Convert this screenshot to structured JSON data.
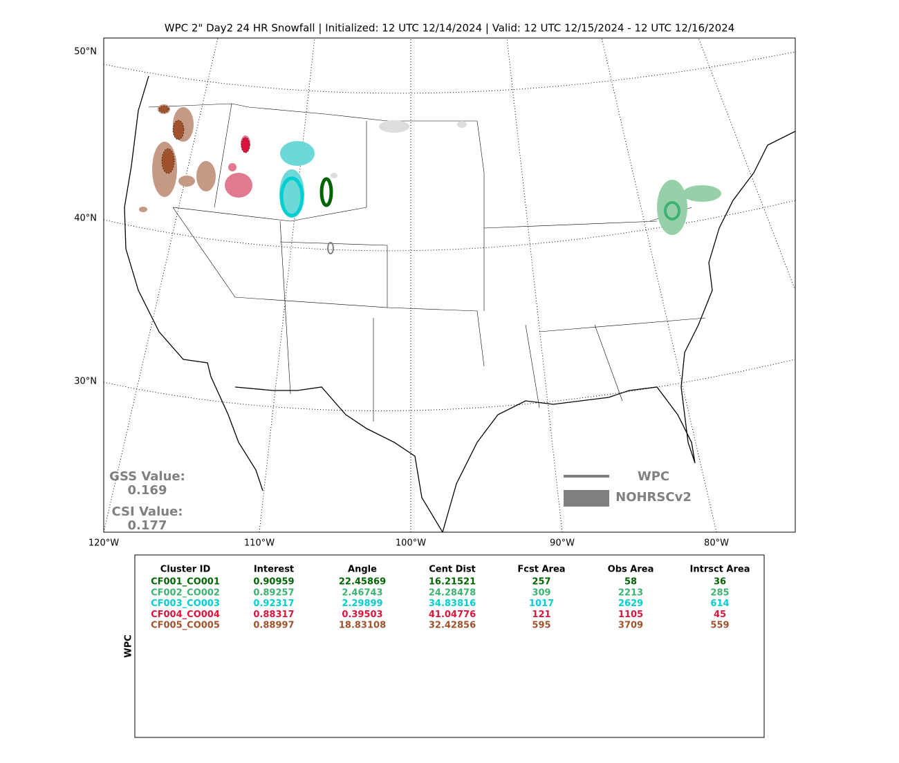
{
  "title": "WPC 2\" Day2 24 HR Snowfall | Initialized: 12 UTC 12/14/2024 | Valid: 12 UTC 12/15/2024 - 12 UTC 12/16/2024",
  "map": {
    "lat_labels": [
      "50°N",
      "40°N",
      "30°N"
    ],
    "lon_labels": [
      "120°W",
      "110°W",
      "100°W",
      "90°W",
      "80°W"
    ],
    "gss_label": "GSS Value:",
    "gss_value": "0.169",
    "csi_label": "CSI Value:",
    "csi_value": "0.177",
    "legend": [
      "WPC",
      "NOHRSCv2"
    ]
  },
  "table": {
    "side_label": "WPC",
    "header": [
      "Cluster ID",
      "Interest",
      "Angle",
      "Cent Dist",
      "Fcst Area",
      "Obs Area",
      "Intrsct Area"
    ],
    "rows": [
      {
        "color": "#006400",
        "cells": [
          "CF001_CO001",
          "0.90959",
          "22.45869",
          "16.21521",
          "257",
          "58",
          "36"
        ]
      },
      {
        "color": "#3cb371",
        "cells": [
          "CF002_CO002",
          "0.89257",
          "2.46743",
          "24.28478",
          "309",
          "2213",
          "285"
        ]
      },
      {
        "color": "#00ced1",
        "cells": [
          "CF003_CO003",
          "0.92317",
          "2.29899",
          "34.83816",
          "1017",
          "2629",
          "614"
        ]
      },
      {
        "color": "#dc143c",
        "cells": [
          "CF004_CO004",
          "0.88317",
          "0.39503",
          "41.04776",
          "121",
          "1105",
          "45"
        ]
      },
      {
        "color": "#a0522d",
        "cells": [
          "CF005_CO005",
          "0.88997",
          "18.83108",
          "32.42856",
          "595",
          "3709",
          "559"
        ]
      }
    ]
  }
}
